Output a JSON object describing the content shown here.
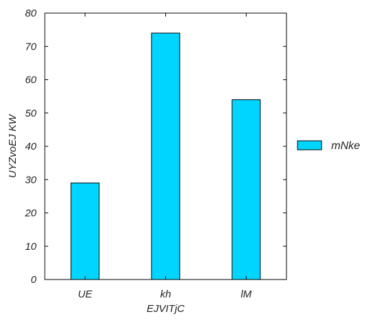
{
  "chart_data": {
    "type": "bar",
    "title": "",
    "xlabel": "EJVITjC",
    "ylabel": "UYZvoEJ KW",
    "categories": [
      "UE",
      "kh",
      "lM"
    ],
    "series": [
      {
        "name": "mNke",
        "values": [
          29,
          74,
          54
        ]
      }
    ],
    "ylim": [
      0,
      80
    ],
    "yticks": [
      0,
      10,
      20,
      30,
      40,
      50,
      60,
      70,
      80
    ],
    "grid": false,
    "legend_position": "right",
    "bar_color": "#00d5ff",
    "edge_color": "#000000"
  }
}
